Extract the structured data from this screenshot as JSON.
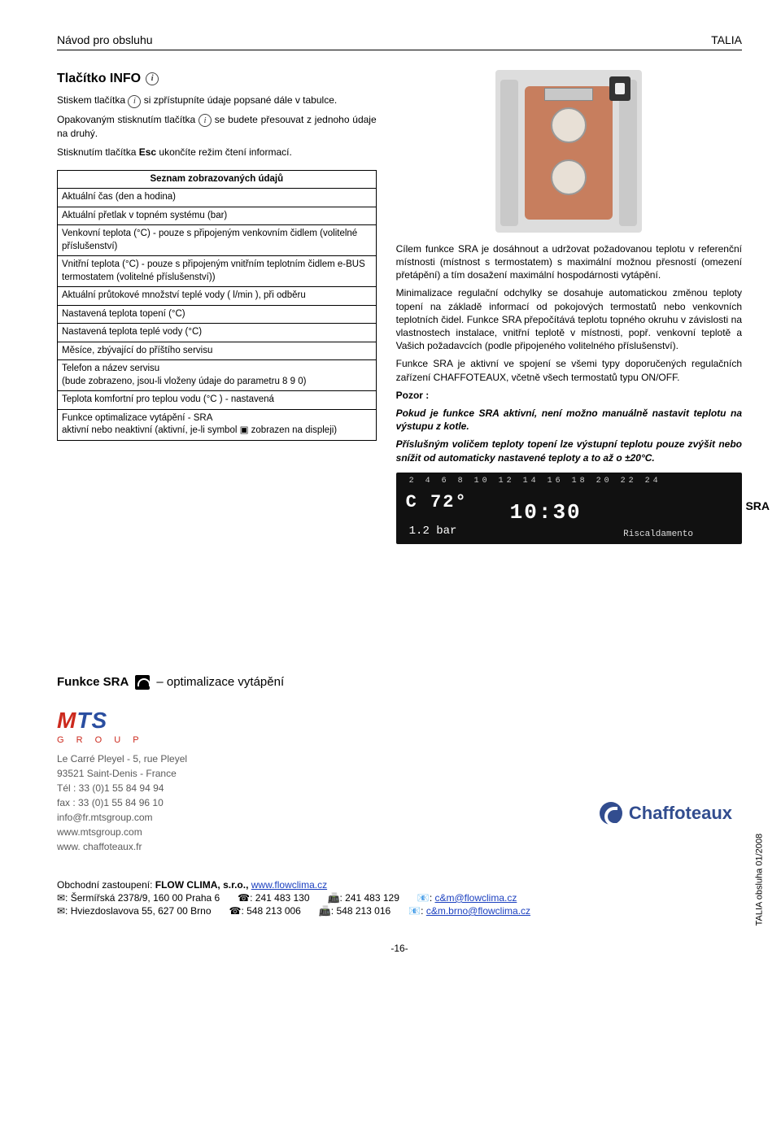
{
  "header": {
    "left": "Návod pro obsluhu",
    "right": "TALIA"
  },
  "info": {
    "title": "Tlačítko INFO",
    "p1a": "Stiskem tlačítka ",
    "p1b": " si zpřístupníte údaje popsané dále v tabulce.",
    "p2a": "Opakovaným stisknutím tlačítka ",
    "p2b": " se budete přesouvat z jednoho údaje na druhý.",
    "p3a": "Stisknutím tlačítka ",
    "p3esc": "Esc",
    "p3b": " ukončíte režim čtení informací."
  },
  "table": {
    "caption": "Seznam zobrazovaných údajů",
    "rows": [
      "Aktuální čas (den a hodina)",
      "Aktuální přetlak v topném systému (bar)",
      "Venkovní teplota (°C) - pouze s připojeným venkovním čidlem (volitelné příslušenství)",
      "Vnitřní teplota (°C) - pouze s připojeným vnitřním teplotním čidlem e-BUS termostatem (volitelné příslušenství))",
      "Aktuální průtokové množství teplé vody ( l/min ), při odběru",
      "Nastavená teplota topení (°C)",
      "Nastavená teplota teplé vody (°C)",
      "Měsíce, zbývající do příštího servisu",
      "Telefon a název servisu\n(bude zobrazeno, jsou-li vloženy údaje do parametru 8 9 0)",
      "Teplota komfortní pro teplou vodu (°C ) - nastavená",
      "Funkce optimalizace vytápění - SRA\naktivní nebo neaktivní (aktivní, je-li symbol ▣ zobrazen na displeji)"
    ]
  },
  "right": {
    "p1": "Cílem funkce SRA je dosáhnout a udržovat požadovanou teplotu v referenční místnosti (místnost s termostatem) s maximální možnou přesností (omezení přetápění) a tím dosažení maximální hospodárnosti vytápění.",
    "p2": "Minimalizace regulační odchylky se dosahuje automatickou změnou teploty topení na základě informací od pokojových termostatů nebo venkovních teplotních čidel. Funkce SRA přepočítává teplotu topného okruhu v závislosti na vlastnostech instalace, vnitřní teplotě v místnosti, popř. venkovní teplotě a Vašich požadavcích (podle připojeného volitelného příslušenství).",
    "p3": "Funkce SRA je aktivní ve spojení se všemi typy doporučených regulačních zařízení CHAFFOTEAUX, včetně všech termostatů typu ON/OFF.",
    "pozor": "Pozor :",
    "p4": "Pokud je funkce SRA aktivní, není možno manuálně nastavit teplotu na výstupu z kotle.",
    "p5": "Příslušným voličem teploty topení lze výstupní teplotu pouze zvýšit nebo snížit od automaticky nastavené teploty a to až o ±20°C."
  },
  "sraDisp": {
    "ticks": "2 4 6 8 10 12 14 16 18 20 22 24",
    "temp": "C 72°",
    "clock": "10:30",
    "bar": "1.2 bar",
    "risc": "Riscaldamento",
    "label": "SRA"
  },
  "sraSection": {
    "prefix": "Funkce SRA",
    "suffix": "– optimalizace vytápění"
  },
  "mts": {
    "logo1": "M",
    "logo2": "T",
    "logo3": "S",
    "group": "G R O U P",
    "lines": [
      "Le Carré Pleyel - 5, rue Pleyel",
      "93521 Saint-Denis - France",
      "Tél : 33 (0)1 55 84 94 94",
      "fax : 33 (0)1 55 84 96 10",
      "info@fr.mtsgroup.com",
      "www.mtsgroup.com",
      "www. chaffoteaux.fr"
    ]
  },
  "chaff": "Chaffoteaux",
  "footer": {
    "line1a": "Obchodní zastoupení: ",
    "line1b": "FLOW CLIMA, s.r.o., ",
    "link1": "www.flowclima.cz",
    "addr1": "✉: Šermířská 2378/9, 160 00 Praha 6",
    "tel1": "☎: 241 483 130",
    "fax1": "📠: 241 483 129",
    "mail1": "📧: c&m@flowclima.cz",
    "addr2": "✉: Hviezdoslavova 55,  627 00 Brno",
    "tel2": "☎: 548 213 006",
    "fax2": "📠: 548 213 016",
    "mail2": "📧: c&m.brno@flowclima.cz",
    "mail1link": "c&m@flowclima.cz",
    "mail2link": "c&m.brno@flowclima.cz"
  },
  "side": "TALIA obsluha 01/2008",
  "pagenum": "-16-"
}
